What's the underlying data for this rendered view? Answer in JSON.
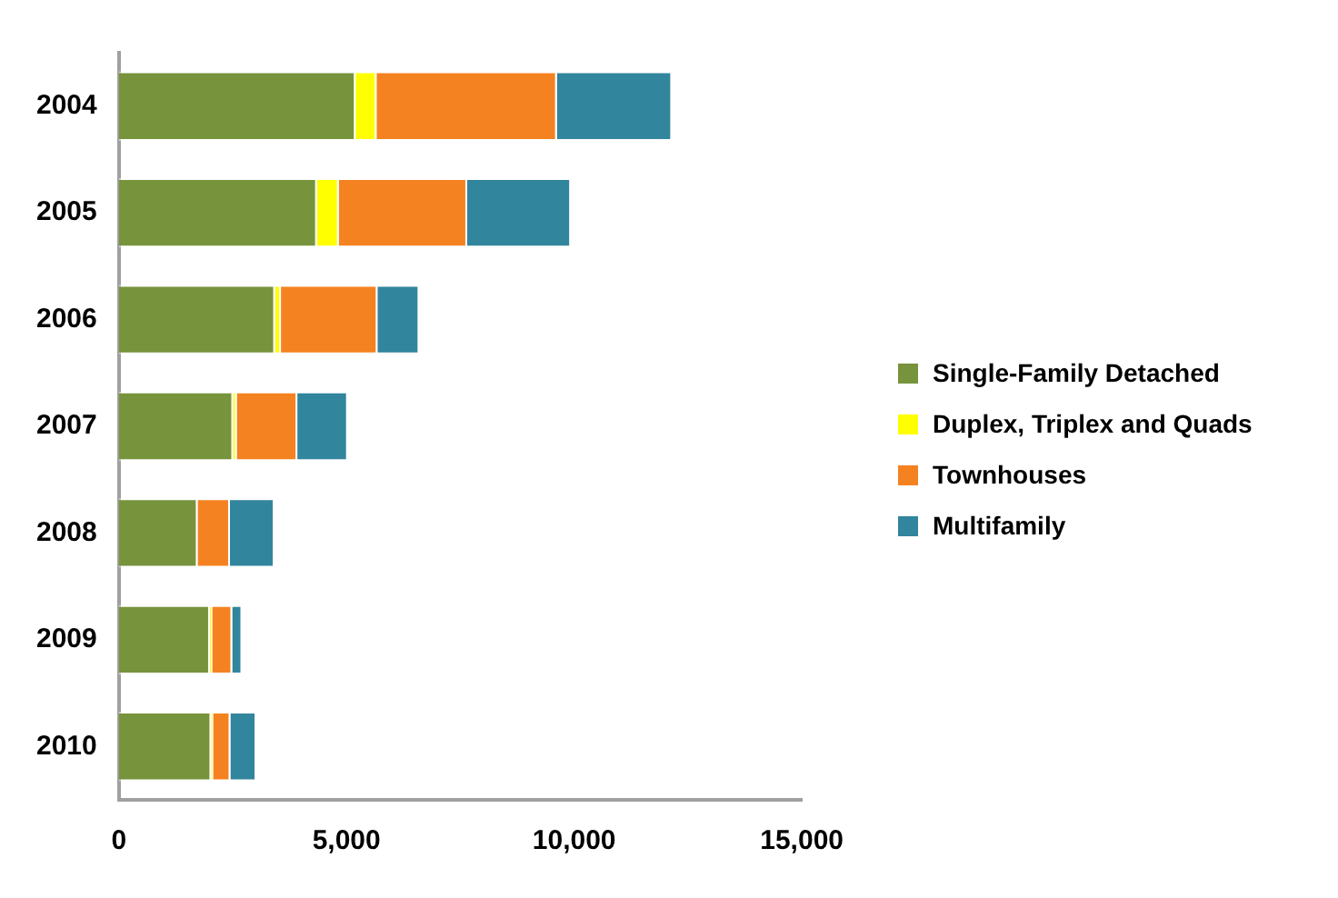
{
  "chart_data": {
    "type": "bar",
    "orientation": "horizontal",
    "stacked": true,
    "categories": [
      "2004",
      "2005",
      "2006",
      "2007",
      "2008",
      "2009",
      "2010"
    ],
    "series": [
      {
        "name": "Single-Family Detached",
        "color": "#77933c",
        "values": [
          5200,
          4350,
          3430,
          2510,
          1730,
          2000,
          2030
        ]
      },
      {
        "name": "Duplex, Triplex and Quads",
        "color": "#ffff00",
        "values": [
          460,
          480,
          130,
          80,
          0,
          50,
          40
        ]
      },
      {
        "name": "Townhouses",
        "color": "#f58220",
        "values": [
          3960,
          2820,
          2120,
          1330,
          710,
          440,
          380
        ]
      },
      {
        "name": "Multifamily",
        "color": "#31859c",
        "values": [
          2530,
          2280,
          920,
          1110,
          980,
          220,
          570
        ]
      }
    ],
    "xlim": [
      0,
      15000
    ],
    "xticks": [
      {
        "value": 0,
        "label": "0"
      },
      {
        "value": 5000,
        "label": "5,000"
      },
      {
        "value": 10000,
        "label": "10,000"
      },
      {
        "value": 15000,
        "label": "15,000"
      }
    ],
    "grid": false,
    "legend": "right"
  }
}
